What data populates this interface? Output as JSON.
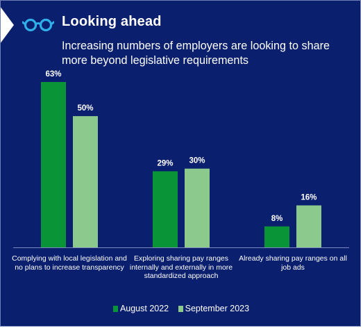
{
  "header": {
    "title": "Looking ahead",
    "subtitle": "Increasing numbers of employers are looking to share more beyond legislative requirements",
    "icon": "glasses-icon"
  },
  "colors": {
    "background": "#0a1f6e",
    "august_2022": "#0a9438",
    "september_2023": "#8cc98c",
    "icon": "#2fb0e8"
  },
  "chart_data": {
    "type": "bar",
    "categories": [
      "Complying with local legislation and no plans to increase transparency",
      "Exploring sharing pay ranges internally and externally in more standardized approach",
      "Already sharing pay ranges on all job ads"
    ],
    "series": [
      {
        "name": "August 2022",
        "values": [
          63,
          29,
          8
        ],
        "labels": [
          "63%",
          "29%",
          "8%"
        ]
      },
      {
        "name": "September 2023",
        "values": [
          50,
          30,
          16
        ],
        "labels": [
          "50%",
          "30%",
          "16%"
        ]
      }
    ],
    "ylim": [
      0,
      63
    ],
    "grid": false,
    "legend_position": "bottom"
  },
  "legend": {
    "items": [
      {
        "label": "August 2022"
      },
      {
        "label": "September 2023"
      }
    ]
  }
}
